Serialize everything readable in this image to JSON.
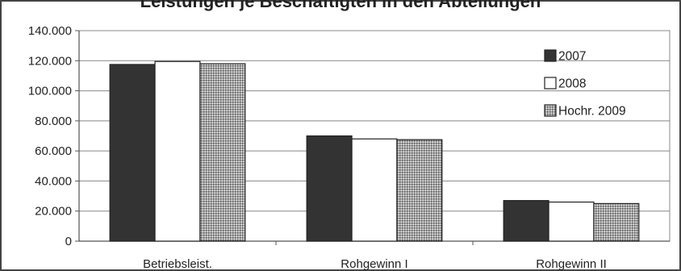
{
  "chart_data": {
    "type": "bar",
    "title": "Leistungen je Beschäftigten in den Abteilungen",
    "categories": [
      "Betriebsleist.",
      "Rohgewinn I",
      "Rohgewinn II"
    ],
    "series": [
      {
        "name": "2007",
        "values": [
          117500,
          70000,
          27000
        ],
        "color": "#333333",
        "pattern": "solid"
      },
      {
        "name": "2008",
        "values": [
          119500,
          68000,
          26000
        ],
        "color": "#ffffff",
        "pattern": "outline"
      },
      {
        "name": "Hochr. 2009",
        "values": [
          118000,
          67500,
          25000
        ],
        "color": "#888888",
        "pattern": "crosshatch"
      }
    ],
    "ylim": [
      0,
      140000
    ],
    "yticks": [
      "0",
      "20.000",
      "40.000",
      "60.000",
      "80.000",
      "100.000",
      "120.000",
      "140.000"
    ],
    "ytick_step": 20000,
    "xlabel": "",
    "ylabel": "",
    "grid": true,
    "legend_position": "top-right"
  }
}
